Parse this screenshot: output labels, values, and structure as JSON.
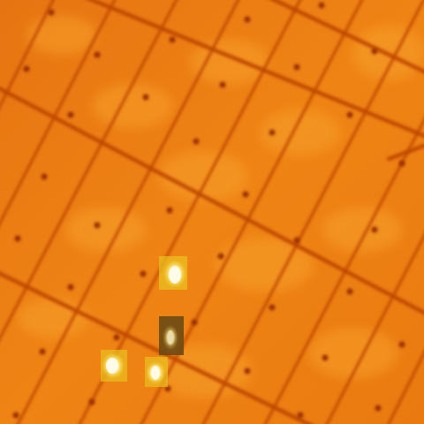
{
  "image": {
    "kind": "thermal-infrared-aerial",
    "subject": "solar-panel-array",
    "colors": {
      "base": "#ec7d10",
      "light": "#f59a22",
      "seam": "#c24a05",
      "dot": "#9a2e02",
      "hotspot_core": "#fffbd0",
      "hotspot_glow": "#ffe050",
      "box_fill": "#e8c020",
      "box_dark": "#6a4a14"
    },
    "hotspot_count": 4
  }
}
